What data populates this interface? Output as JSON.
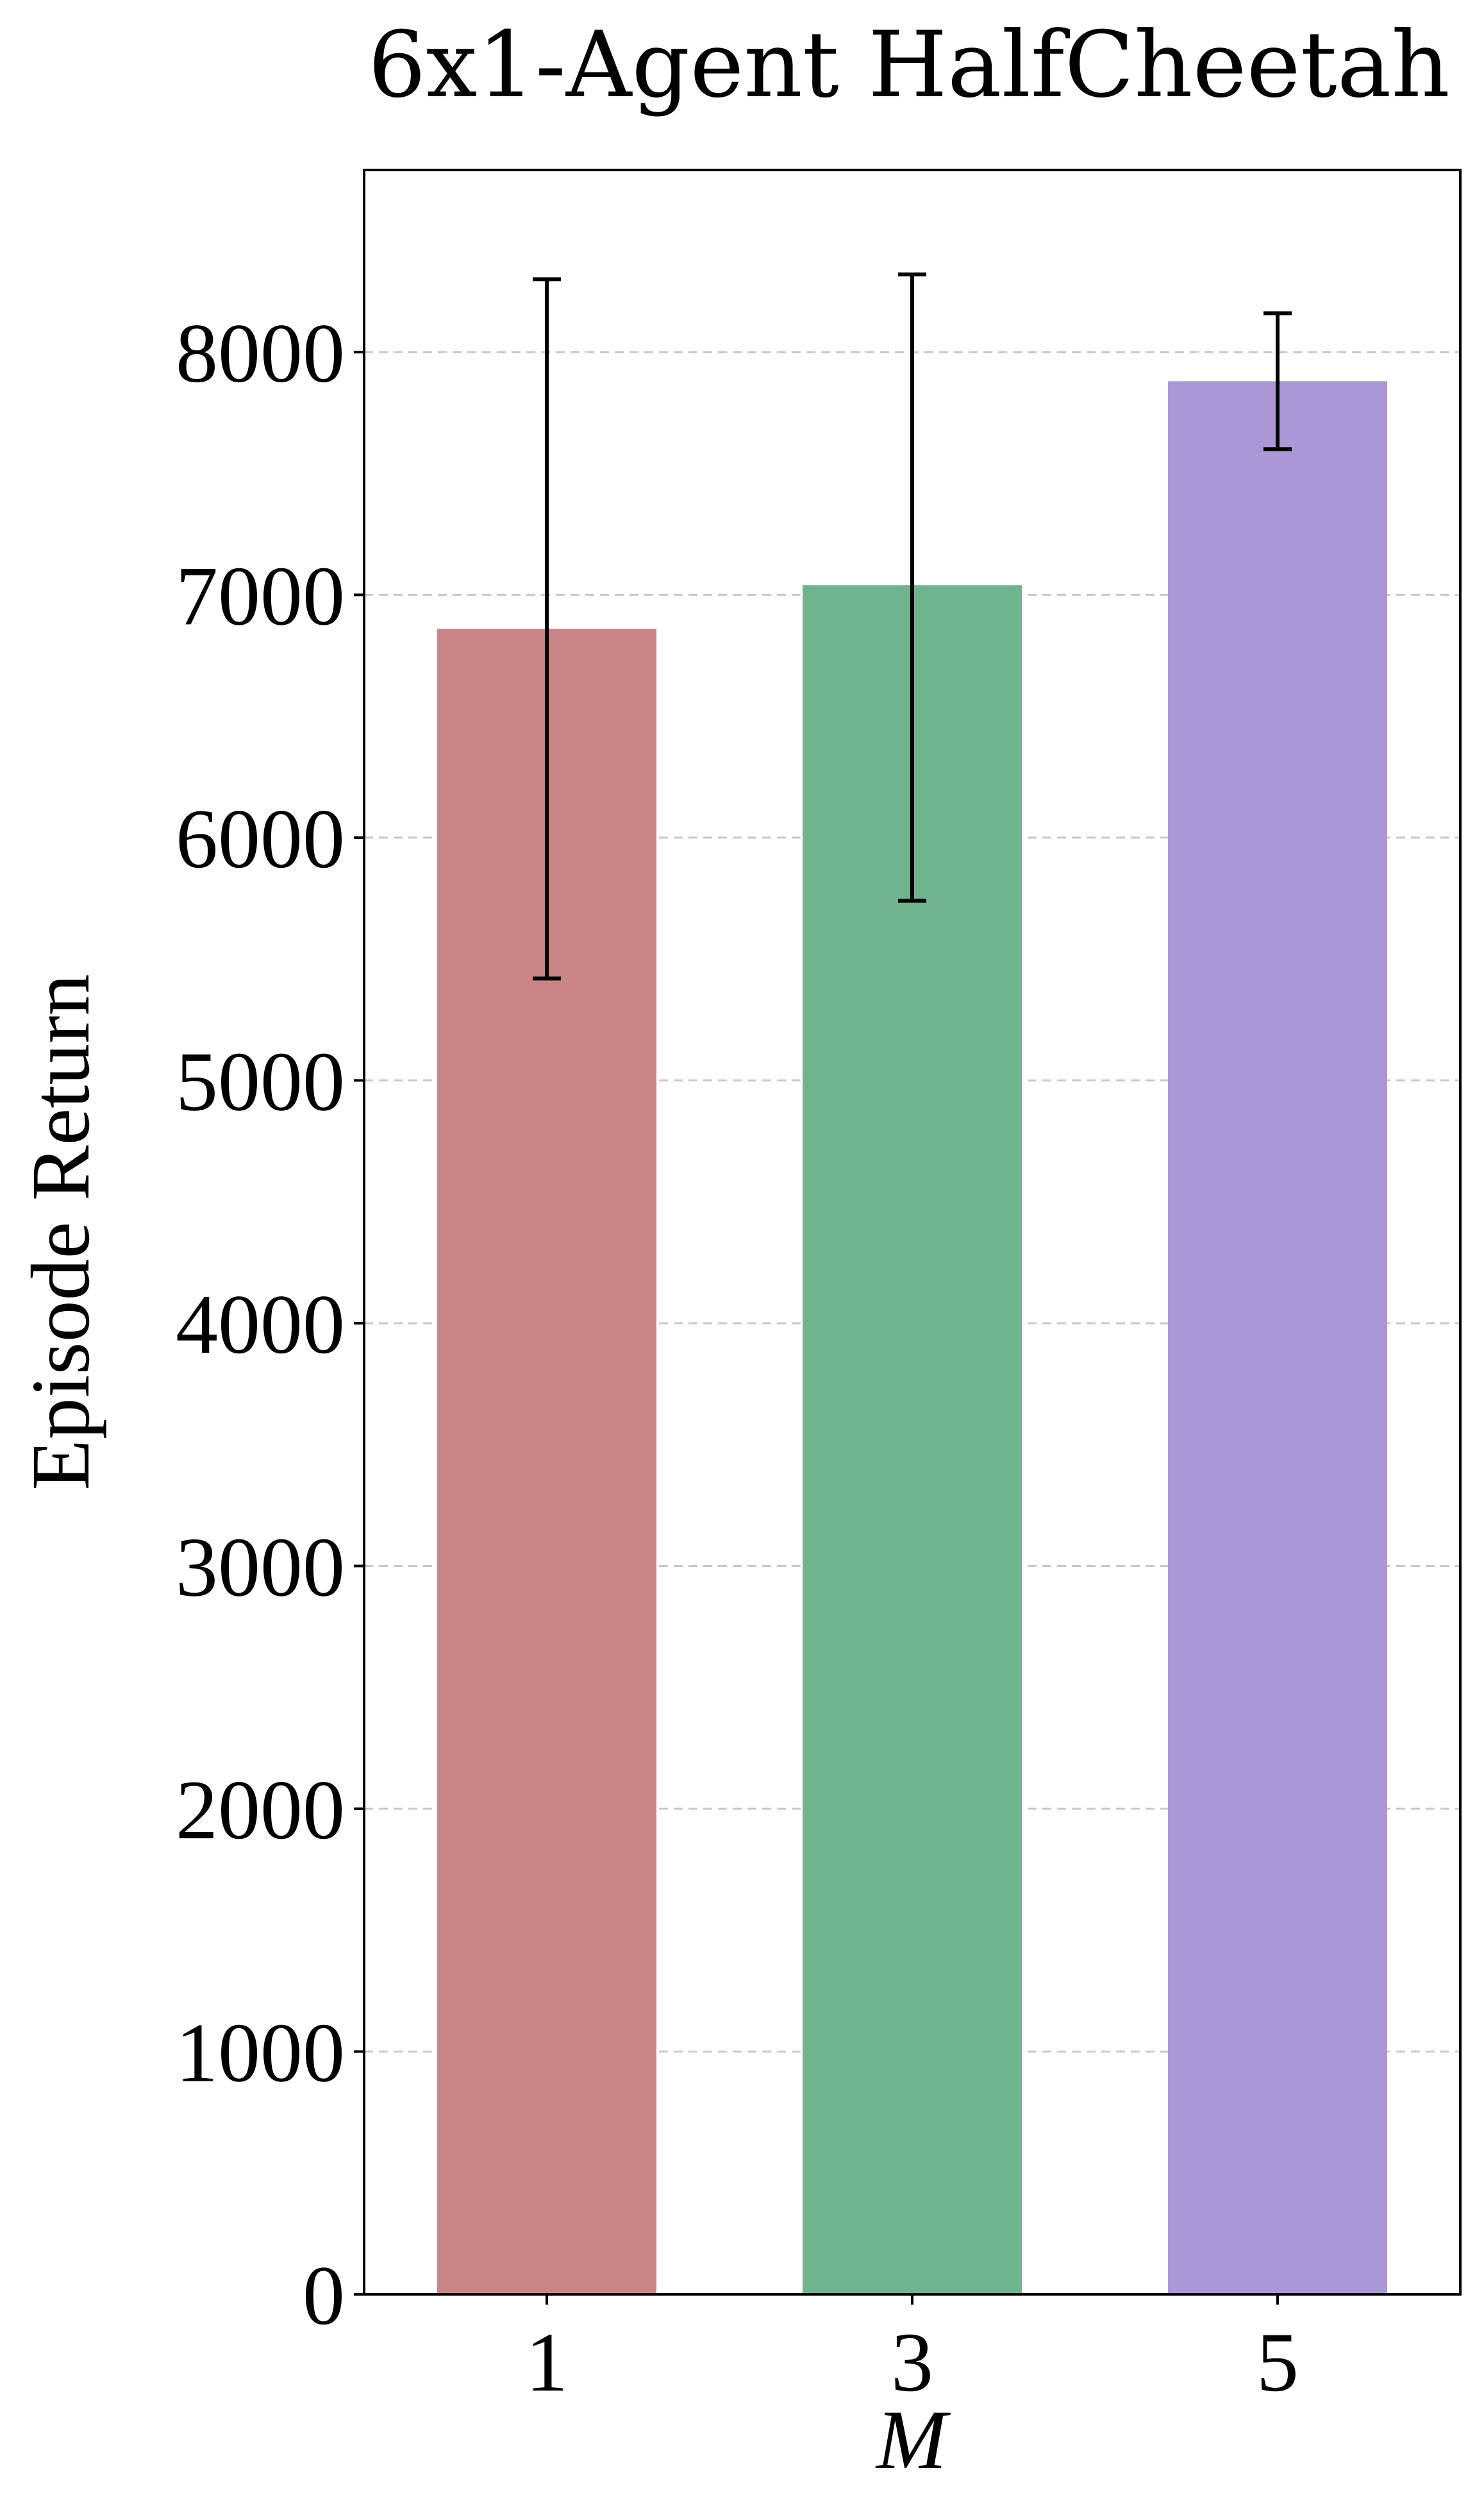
{
  "chart_data": {
    "type": "bar",
    "title": "6x1-Agent HalfCheetah",
    "xlabel": "M",
    "ylabel": "Episode Return",
    "categories": [
      "1",
      "3",
      "5"
    ],
    "values": [
      6860,
      7040,
      7880
    ],
    "error_low": [
      5420,
      5740,
      7600
    ],
    "error_high": [
      8300,
      8320,
      8160
    ],
    "colors": [
      "#c98585",
      "#6fb38f",
      "#ab97d6"
    ],
    "ylim": [
      0,
      8750
    ],
    "yticks": [
      0,
      1000,
      2000,
      3000,
      4000,
      5000,
      6000,
      7000,
      8000
    ],
    "ytick_labels": [
      "0",
      "1000",
      "2000",
      "3000",
      "4000",
      "5000",
      "6000",
      "7000",
      "8000"
    ],
    "grid": "y, dashed",
    "legend": "none"
  }
}
